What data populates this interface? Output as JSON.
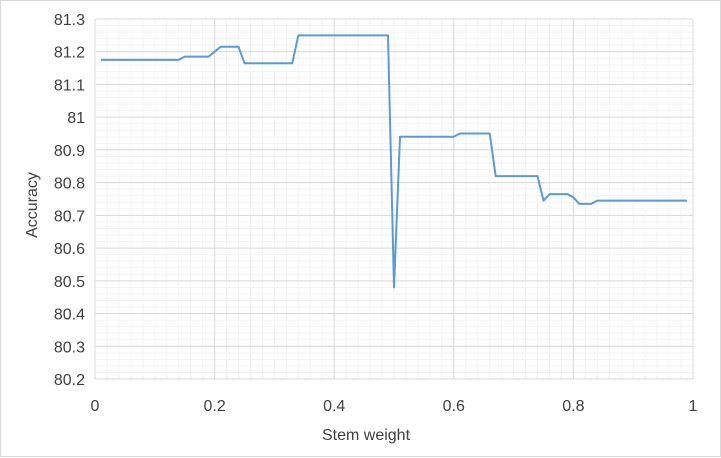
{
  "chart_data": {
    "type": "line",
    "title": "",
    "xlabel": "Stem weight",
    "ylabel": "Accuracy",
    "xlim": [
      0,
      1
    ],
    "ylim": [
      80.2,
      81.3
    ],
    "x_ticks": [
      "0",
      "0.2",
      "0.4",
      "0.6",
      "0.8",
      "1"
    ],
    "y_ticks": [
      "80.2",
      "80.3",
      "80.4",
      "80.5",
      "80.6",
      "80.7",
      "80.8",
      "80.9",
      "81",
      "81.1",
      "81.2",
      "81.3"
    ],
    "grid": true,
    "legend": "none",
    "series": [
      {
        "color": "#5b9bd5",
        "x": [
          0.01,
          0.14,
          0.15,
          0.19,
          0.2,
          0.21,
          0.24,
          0.25,
          0.26,
          0.33,
          0.34,
          0.49,
          0.5,
          0.51,
          0.6,
          0.61,
          0.66,
          0.67,
          0.74,
          0.75,
          0.76,
          0.79,
          0.8,
          0.81,
          0.83,
          0.84,
          0.99
        ],
        "y": [
          81.175,
          81.175,
          81.185,
          81.185,
          81.2,
          81.215,
          81.215,
          81.165,
          81.165,
          81.165,
          81.25,
          81.25,
          80.48,
          80.94,
          80.94,
          80.95,
          80.95,
          80.82,
          80.82,
          80.745,
          80.765,
          80.765,
          80.755,
          80.735,
          80.735,
          80.745,
          80.745
        ]
      }
    ]
  }
}
